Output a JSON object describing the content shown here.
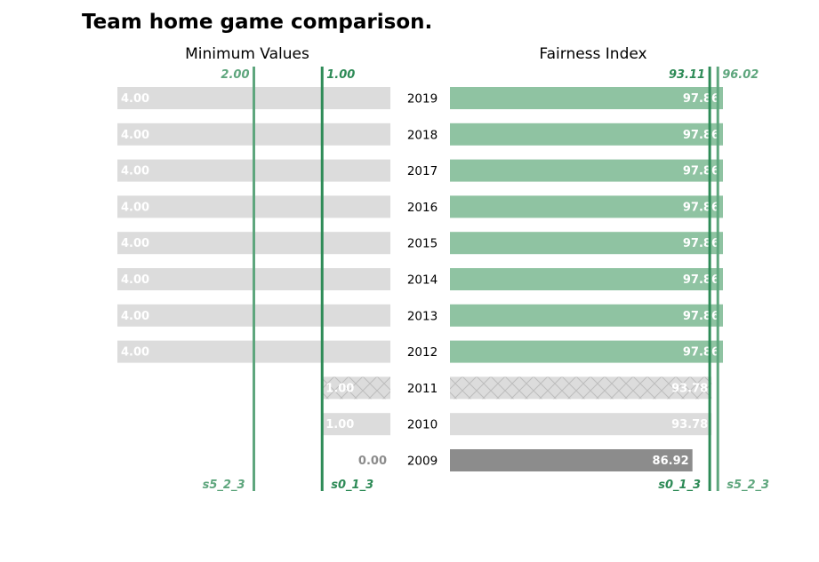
{
  "chart_data": {
    "type": "bar",
    "title": "Team home game comparison.",
    "categories": [
      "2019",
      "2018",
      "2017",
      "2016",
      "2015",
      "2014",
      "2013",
      "2012",
      "2011",
      "2010",
      "2009"
    ],
    "panels": [
      {
        "title": "Minimum Values",
        "orientation": "horizontal-reversed",
        "xlim": [
          0,
          4
        ],
        "values": [
          4,
          4,
          4,
          4,
          4,
          4,
          4,
          4,
          1,
          1,
          0
        ],
        "value_labels": [
          "4.00",
          "4.00",
          "4.00",
          "4.00",
          "4.00",
          "4.00",
          "4.00",
          "4.00",
          "1.00",
          "1.00",
          "0.00"
        ],
        "bar_styles": [
          "plain",
          "plain",
          "plain",
          "plain",
          "plain",
          "plain",
          "plain",
          "plain",
          "hatched",
          "plain",
          "plain"
        ],
        "reference_lines": [
          {
            "name": "s5_2_3",
            "value": 2.0,
            "label": "2.00",
            "color": "#5ea67d"
          },
          {
            "name": "s0_1_3",
            "value": 1.0,
            "label": "1.00",
            "color": "#2e8b57"
          }
        ]
      },
      {
        "title": "Fairness Index",
        "orientation": "horizontal",
        "xlim": [
          0,
          97.86
        ],
        "values": [
          97.86,
          97.86,
          97.86,
          97.86,
          97.86,
          97.86,
          97.86,
          97.86,
          93.78,
          93.78,
          86.92
        ],
        "value_labels": [
          "97.86",
          "97.86",
          "97.86",
          "97.86",
          "97.86",
          "97.86",
          "97.86",
          "97.86",
          "93.78",
          "93.78",
          "86.92"
        ],
        "bar_styles": [
          "green",
          "green",
          "green",
          "green",
          "green",
          "green",
          "green",
          "green",
          "hatched",
          "plain",
          "dark"
        ],
        "reference_lines": [
          {
            "name": "s0_1_3",
            "value": 93.11,
            "label": "93.11",
            "color": "#2e8b57"
          },
          {
            "name": "s5_2_3",
            "value": 96.02,
            "label": "96.02",
            "color": "#5ea67d"
          }
        ]
      }
    ],
    "colors": {
      "plain": "#dcdcdc",
      "green": "#8fc3a2",
      "dark": "#8c8c8c",
      "hatch_line": "#bdbdbd",
      "label_light": "#ffffff",
      "label_gray": "#8c8c8c"
    },
    "grid": false,
    "legend": "none"
  }
}
